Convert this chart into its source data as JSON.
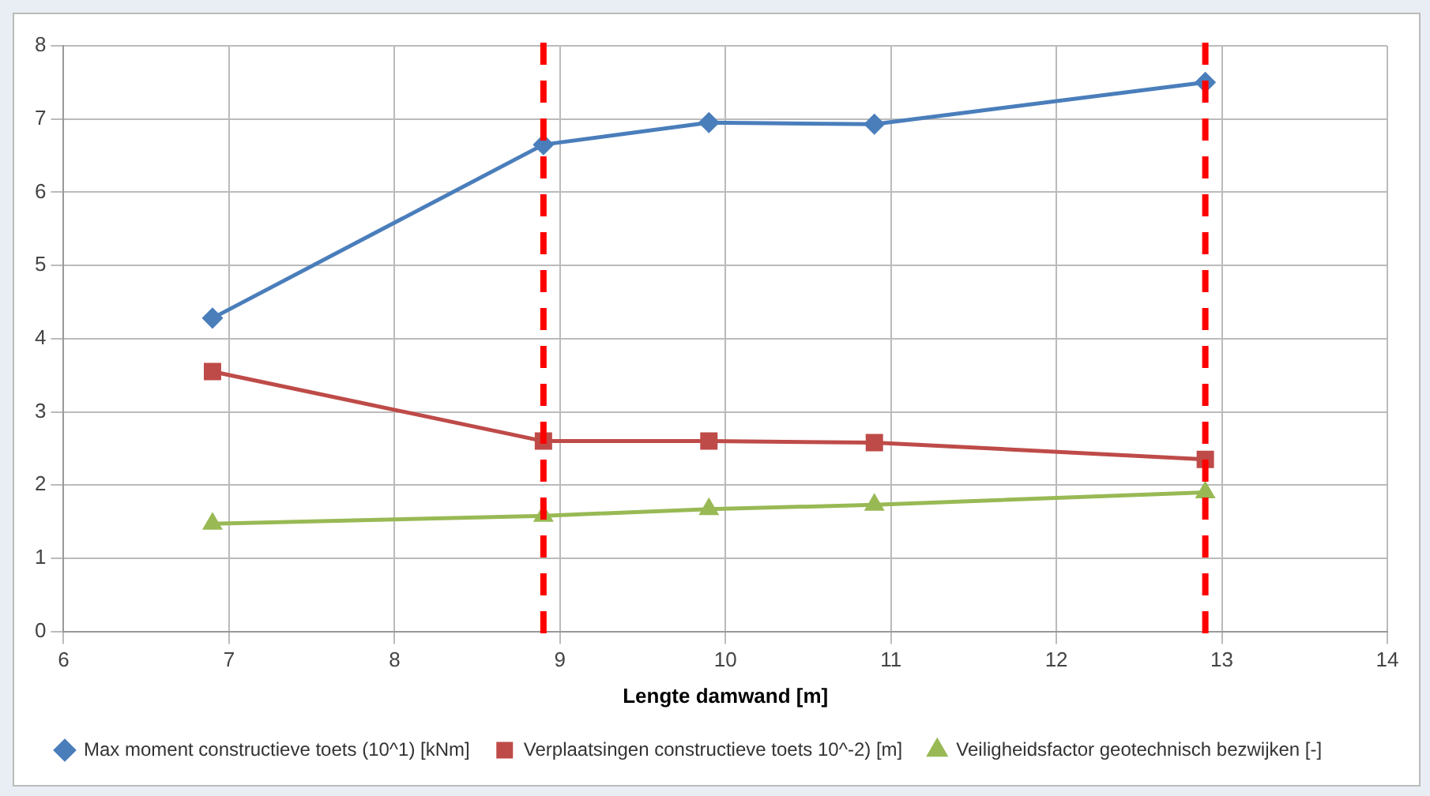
{
  "chart_data": {
    "type": "line",
    "xlabel": "Lengte damwand [m]",
    "x": [
      6.9,
      8.9,
      9.9,
      10.9,
      12.9
    ],
    "series": [
      {
        "name": "Max moment constructieve toets (10^1) [kNm]",
        "color": "#4a7ebb",
        "marker": "diamond",
        "values": [
          4.28,
          6.65,
          6.95,
          6.93,
          7.5
        ]
      },
      {
        "name": "Verplaatsingen constructieve toets 10^-2) [m]",
        "color": "#be4b48",
        "marker": "square",
        "values": [
          3.55,
          2.6,
          2.6,
          2.58,
          2.35
        ]
      },
      {
        "name": "Veiligheidsfactor geotechnisch bezwijken [-]",
        "color": "#98b954",
        "marker": "triangle",
        "values": [
          1.47,
          1.58,
          1.67,
          1.73,
          1.9
        ]
      }
    ],
    "xlim": [
      6,
      14
    ],
    "xticks": [
      6,
      7,
      8,
      9,
      10,
      11,
      12,
      13,
      14
    ],
    "ylim": [
      0,
      8
    ],
    "yticks": [
      0,
      1,
      2,
      3,
      4,
      5,
      6,
      7,
      8
    ],
    "ref_lines": [
      {
        "axis": "x",
        "value": 8.9,
        "color": "#ff0000",
        "line_style": "dashed"
      },
      {
        "axis": "x",
        "value": 12.9,
        "color": "#ff0000",
        "line_style": "dashed"
      }
    ],
    "grid": true,
    "legend": "bottom",
    "line_style": "solid"
  }
}
